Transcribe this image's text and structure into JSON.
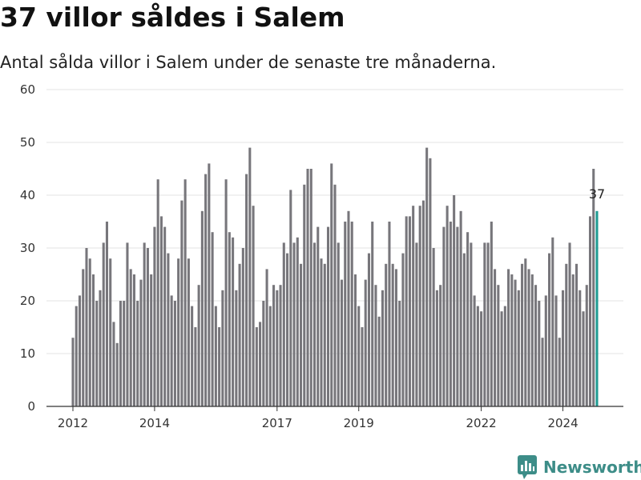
{
  "title": "37 villor såldes i Salem",
  "subtitle": "Antal sålda villor i Salem under de senaste tre månaderna.",
  "brand": {
    "name": "Newsworthy",
    "icon": "newsworthy-logo-icon",
    "color": "#3d8d88"
  },
  "colors": {
    "bar": "#77767b",
    "highlight": "#1f9c92",
    "grid": "#e3e3e3",
    "axis": "#333333"
  },
  "chart_data": {
    "type": "bar",
    "x_start": "2012-01",
    "x_end": "2024-11",
    "ylim": [
      0,
      60
    ],
    "yticks": [
      0,
      10,
      20,
      30,
      40,
      50,
      60
    ],
    "xticks": [
      {
        "label": "2012",
        "month": "2012-01"
      },
      {
        "label": "2014",
        "month": "2014-01"
      },
      {
        "label": "2017",
        "month": "2017-01"
      },
      {
        "label": "2019",
        "month": "2019-01"
      },
      {
        "label": "2022",
        "month": "2022-01"
      },
      {
        "label": "2024",
        "month": "2024-01"
      }
    ],
    "grid": true,
    "values": [
      13,
      19,
      21,
      26,
      30,
      28,
      25,
      20,
      22,
      31,
      35,
      28,
      16,
      12,
      20,
      20,
      31,
      26,
      25,
      20,
      24,
      31,
      30,
      25,
      34,
      43,
      36,
      34,
      29,
      21,
      20,
      28,
      39,
      43,
      28,
      19,
      15,
      23,
      37,
      44,
      46,
      33,
      19,
      15,
      22,
      43,
      33,
      32,
      22,
      27,
      30,
      44,
      49,
      38,
      15,
      16,
      20,
      26,
      19,
      23,
      22,
      23,
      31,
      29,
      41,
      31,
      32,
      27,
      42,
      45,
      45,
      31,
      34,
      28,
      27,
      34,
      46,
      42,
      31,
      24,
      35,
      37,
      35,
      25,
      19,
      15,
      24,
      29,
      35,
      23,
      17,
      22,
      27,
      35,
      27,
      26,
      20,
      29,
      36,
      36,
      38,
      31,
      38,
      39,
      49,
      47,
      30,
      22,
      23,
      34,
      38,
      35,
      40,
      34,
      37,
      29,
      33,
      31,
      21,
      19,
      18,
      31,
      31,
      35,
      26,
      23,
      18,
      19,
      26,
      25,
      24,
      22,
      27,
      28,
      26,
      25,
      23,
      20,
      13,
      21,
      29,
      32,
      21,
      13,
      22,
      27,
      31,
      25,
      27,
      22,
      18,
      23,
      36,
      45,
      37
    ],
    "highlight_index": 154,
    "highlight_label": "37"
  }
}
